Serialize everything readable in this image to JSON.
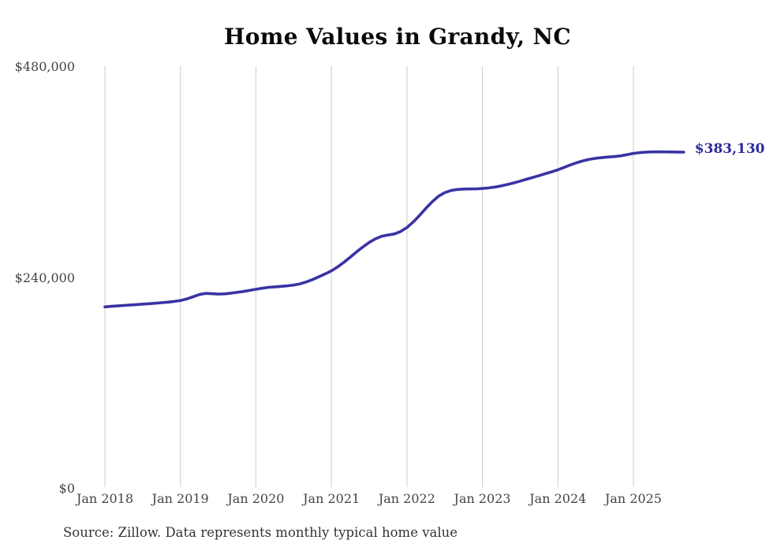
{
  "title": "Home Values in Grandy, NC",
  "end_value_label": "$383,130",
  "source_note": "Source: Zillow. Data represents monthly typical home value",
  "colors": {
    "line": "#3933a3",
    "end_label": "#2b2a9d",
    "grid": "#cccccc",
    "axis_text": "#444444",
    "title_text": "#0a0a0a",
    "source_text": "#333333",
    "background": "#ffffff"
  },
  "chart_data": {
    "type": "line",
    "title": "Home Values in Grandy, NC",
    "xlabel": "",
    "ylabel": "",
    "ylim": [
      0,
      480000
    ],
    "grid": "vertical-only",
    "legend": "none",
    "series_name": "Monthly typical home value (Zillow)",
    "final_value": 383130,
    "y_ticks": [
      {
        "value": 480000,
        "label": "$480,000"
      },
      {
        "value": 240000,
        "label": "$240,000"
      },
      {
        "value": 0,
        "label": "$0"
      }
    ],
    "x_ticks": [
      {
        "month_index": 0,
        "label": "Jan 2018"
      },
      {
        "month_index": 12,
        "label": "Jan 2019"
      },
      {
        "month_index": 24,
        "label": "Jan 2020"
      },
      {
        "month_index": 36,
        "label": "Jan 2021"
      },
      {
        "month_index": 48,
        "label": "Jan 2022"
      },
      {
        "month_index": 60,
        "label": "Jan 2023"
      },
      {
        "month_index": 72,
        "label": "Jan 2024"
      },
      {
        "month_index": 84,
        "label": "Jan 2025"
      }
    ],
    "months": [
      "2018-01",
      "2018-02",
      "2018-03",
      "2018-04",
      "2018-05",
      "2018-06",
      "2018-07",
      "2018-08",
      "2018-09",
      "2018-10",
      "2018-11",
      "2018-12",
      "2019-01",
      "2019-02",
      "2019-03",
      "2019-04",
      "2019-05",
      "2019-06",
      "2019-07",
      "2019-08",
      "2019-09",
      "2019-10",
      "2019-11",
      "2019-12",
      "2020-01",
      "2020-02",
      "2020-03",
      "2020-04",
      "2020-05",
      "2020-06",
      "2020-07",
      "2020-08",
      "2020-09",
      "2020-10",
      "2020-11",
      "2020-12",
      "2021-01",
      "2021-02",
      "2021-03",
      "2021-04",
      "2021-05",
      "2021-06",
      "2021-07",
      "2021-08",
      "2021-09",
      "2021-10",
      "2021-11",
      "2021-12",
      "2022-01",
      "2022-02",
      "2022-03",
      "2022-04",
      "2022-05",
      "2022-06",
      "2022-07",
      "2022-08",
      "2022-09",
      "2022-10",
      "2022-11",
      "2022-12",
      "2023-01",
      "2023-02",
      "2023-03",
      "2023-04",
      "2023-05",
      "2023-06",
      "2023-07",
      "2023-08",
      "2023-09",
      "2023-10",
      "2023-11",
      "2023-12",
      "2024-01",
      "2024-02",
      "2024-03",
      "2024-04",
      "2024-05",
      "2024-06",
      "2024-07",
      "2024-08",
      "2024-09",
      "2024-10",
      "2024-11",
      "2024-12",
      "2025-01",
      "2025-02",
      "2025-03",
      "2025-04",
      "2025-05",
      "2025-06",
      "2025-07",
      "2025-08",
      "2025-09"
    ],
    "values": [
      207000,
      207600,
      208100,
      208600,
      209100,
      209600,
      210100,
      210600,
      211100,
      211700,
      212400,
      213200,
      214200,
      216000,
      218500,
      221000,
      222300,
      222000,
      221500,
      221800,
      222600,
      223500,
      224500,
      225700,
      227000,
      228200,
      229200,
      229800,
      230300,
      230900,
      231800,
      233200,
      235300,
      238000,
      241200,
      244500,
      248000,
      252500,
      257800,
      263600,
      269500,
      275200,
      280300,
      284500,
      287400,
      288800,
      290000,
      292800,
      297300,
      303500,
      311000,
      319000,
      326500,
      332800,
      337000,
      339400,
      340600,
      341100,
      341200,
      341300,
      341700,
      342400,
      343400,
      344700,
      346300,
      348100,
      350100,
      352200,
      354300,
      356400,
      358500,
      360700,
      363000,
      365800,
      368600,
      371100,
      373200,
      374900,
      376100,
      376900,
      377500,
      378100,
      378900,
      380200,
      381700,
      382600,
      383100,
      383400,
      383500,
      383400,
      383250,
      383150,
      383130
    ]
  }
}
